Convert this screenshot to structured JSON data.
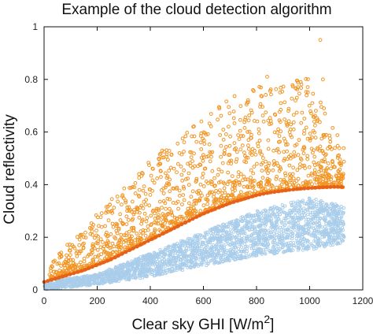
{
  "chart_data": {
    "type": "scatter",
    "title": "Example of the cloud detection algorithm",
    "xlabel": "Clear sky GHI [W/m2]",
    "ylabel": "Cloud reflectivity",
    "xlim": [
      0,
      1200
    ],
    "ylim": [
      0,
      1
    ],
    "xticks": [
      0,
      200,
      400,
      600,
      800,
      1000,
      1200
    ],
    "yticks": [
      0,
      0.2,
      0.4,
      0.6,
      0.8,
      1
    ],
    "ytick_labels": [
      "0",
      "0.2",
      "0.4",
      "0.6",
      "0.8",
      "1"
    ],
    "grid": false,
    "legend": "none",
    "colors": {
      "clear": "#a9cdea",
      "cloudy": "#f29422",
      "threshold": "#e8611a"
    },
    "series": [
      {
        "role": "clear-sky points (below threshold)",
        "marker": "open-circle",
        "density_band": [
          {
            "x": 0,
            "lower": 0.0,
            "upper": 0.03
          },
          {
            "x": 200,
            "lower": 0.02,
            "upper": 0.06
          },
          {
            "x": 400,
            "lower": 0.05,
            "upper": 0.14
          },
          {
            "x": 600,
            "lower": 0.09,
            "upper": 0.22
          },
          {
            "x": 800,
            "lower": 0.13,
            "upper": 0.3
          },
          {
            "x": 1000,
            "lower": 0.15,
            "upper": 0.35
          },
          {
            "x": 1130,
            "lower": 0.18,
            "upper": 0.32
          }
        ]
      },
      {
        "role": "cloudy points (above threshold)",
        "marker": "open-circle",
        "notable_points": [
          {
            "x": 1040,
            "y": 0.95
          },
          {
            "x": 840,
            "y": 0.81
          },
          {
            "x": 1050,
            "y": 0.8
          },
          {
            "x": 1010,
            "y": 0.71
          },
          {
            "x": 610,
            "y": 0.59
          },
          {
            "x": 940,
            "y": 0.61
          },
          {
            "x": 960,
            "y": 0.57
          },
          {
            "x": 680,
            "y": 0.53
          },
          {
            "x": 770,
            "y": 0.57
          },
          {
            "x": 510,
            "y": 0.52
          }
        ]
      },
      {
        "role": "threshold curve",
        "type": "line",
        "x": [
          0,
          50,
          100,
          150,
          200,
          250,
          300,
          350,
          400,
          450,
          500,
          550,
          600,
          650,
          700,
          750,
          800,
          850,
          900,
          950,
          1000,
          1050,
          1100,
          1130
        ],
        "y": [
          0.03,
          0.045,
          0.06,
          0.075,
          0.095,
          0.115,
          0.14,
          0.165,
          0.19,
          0.215,
          0.24,
          0.265,
          0.29,
          0.31,
          0.33,
          0.345,
          0.36,
          0.37,
          0.377,
          0.383,
          0.387,
          0.39,
          0.392,
          0.39
        ]
      }
    ]
  }
}
